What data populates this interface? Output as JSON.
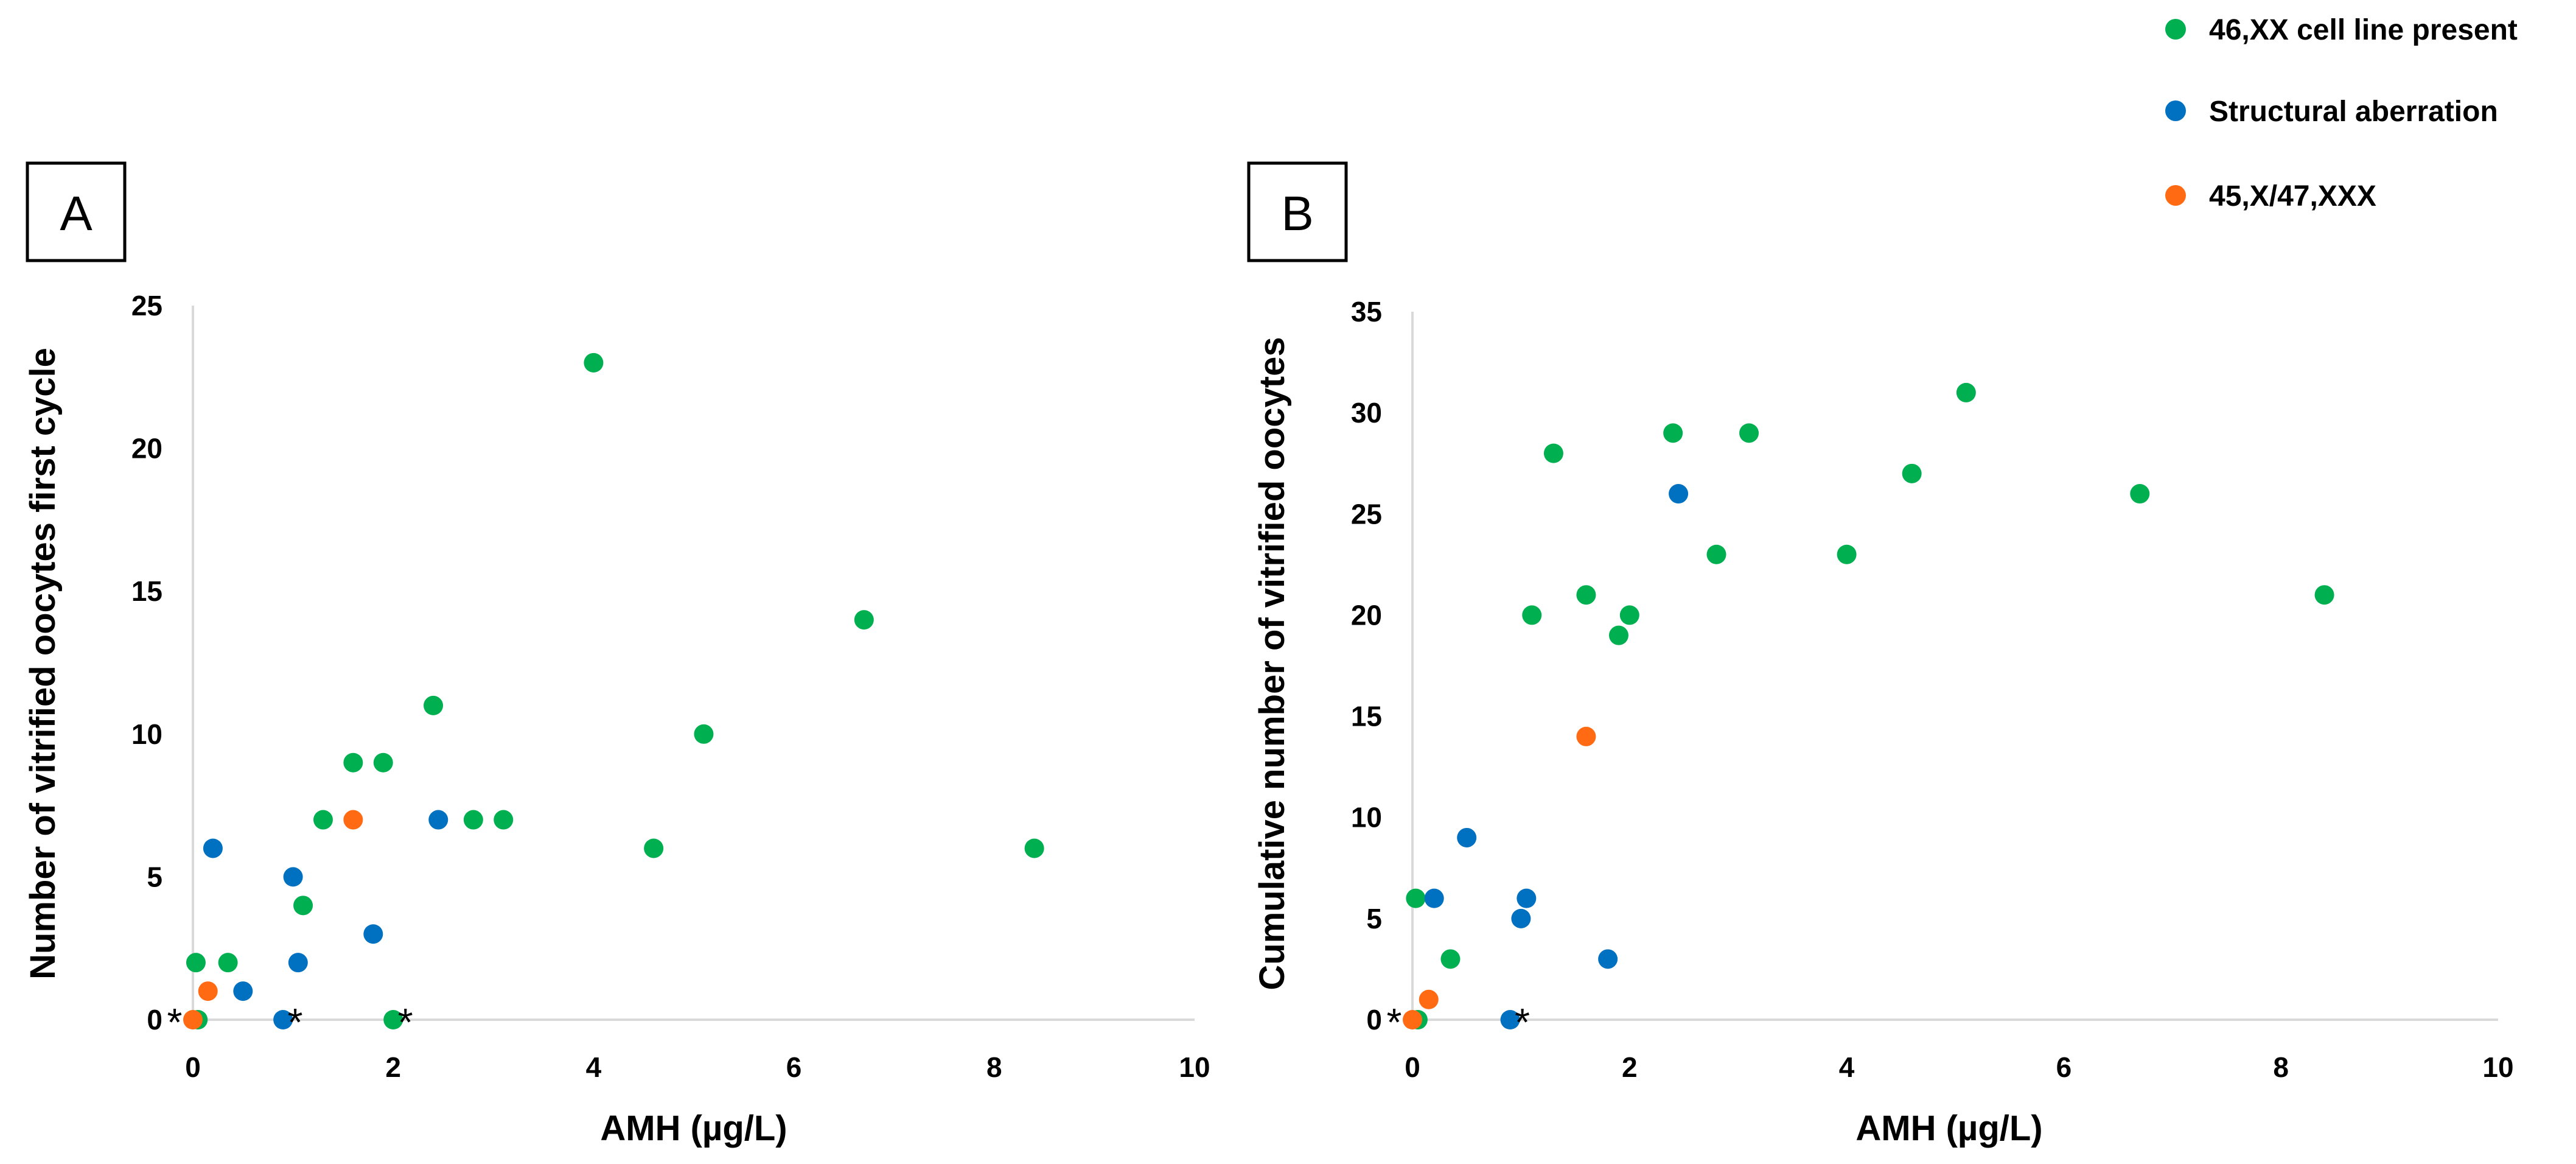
{
  "legend": [
    {
      "label": "46,XX cell line present",
      "color": "#00b050"
    },
    {
      "label": "Structural aberration",
      "color": "#0070c0"
    },
    {
      "label": "45,X/47,XXX",
      "color": "#ff6a13"
    }
  ],
  "chart_data": [
    {
      "type": "scatter",
      "panel_label": "A",
      "title": "",
      "xlabel": "AMH (µg/L)",
      "ylabel": "Number of vitrified oocytes first cycle",
      "xlim": [
        0,
        10
      ],
      "ylim": [
        0,
        25
      ],
      "xticks": [
        0,
        2,
        4,
        6,
        8,
        10
      ],
      "yticks": [
        0,
        5,
        10,
        15,
        20,
        25
      ],
      "grid": false,
      "legend_position": "top-right",
      "series": [
        {
          "name": "46,XX cell line present",
          "color": "#00b050",
          "points": [
            [
              0.03,
              2
            ],
            [
              0.05,
              0
            ],
            [
              0.35,
              2
            ],
            [
              1.1,
              4
            ],
            [
              1.3,
              7
            ],
            [
              1.6,
              9
            ],
            [
              1.9,
              9
            ],
            [
              2.0,
              0
            ],
            [
              2.4,
              11
            ],
            [
              2.8,
              7
            ],
            [
              3.1,
              7
            ],
            [
              4.0,
              23
            ],
            [
              4.6,
              6
            ],
            [
              5.1,
              10
            ],
            [
              6.7,
              14
            ],
            [
              8.4,
              6
            ]
          ]
        },
        {
          "name": "Structural aberration",
          "color": "#0070c0",
          "points": [
            [
              0.2,
              6
            ],
            [
              0.5,
              1
            ],
            [
              0.9,
              0
            ],
            [
              1.0,
              5
            ],
            [
              1.05,
              2
            ],
            [
              1.8,
              3
            ],
            [
              2.45,
              7
            ]
          ]
        },
        {
          "name": "45,X/47,XXX",
          "color": "#ff6a13",
          "points": [
            [
              0.0,
              0
            ],
            [
              0.15,
              1
            ],
            [
              1.6,
              7
            ]
          ]
        }
      ],
      "annotations": [
        {
          "text": "*",
          "x": 0.0,
          "y": 0
        },
        {
          "text": "*",
          "x": 0.9,
          "y": 0
        },
        {
          "text": "*",
          "x": 2.0,
          "y": 0
        }
      ]
    },
    {
      "type": "scatter",
      "panel_label": "B",
      "title": "",
      "xlabel": "AMH (µg/L)",
      "ylabel": "Cumulative number of vitrified oocytes",
      "xlim": [
        0,
        10
      ],
      "ylim": [
        0,
        35
      ],
      "xticks": [
        0,
        2,
        4,
        6,
        8,
        10
      ],
      "yticks": [
        0,
        5,
        10,
        15,
        20,
        25,
        30,
        35
      ],
      "grid": false,
      "series": [
        {
          "name": "46,XX cell line present",
          "color": "#00b050",
          "points": [
            [
              0.03,
              6
            ],
            [
              0.05,
              0
            ],
            [
              0.35,
              3
            ],
            [
              1.1,
              20
            ],
            [
              1.3,
              28
            ],
            [
              1.6,
              21
            ],
            [
              1.9,
              19
            ],
            [
              2.0,
              20
            ],
            [
              2.4,
              29
            ],
            [
              2.8,
              23
            ],
            [
              3.1,
              29
            ],
            [
              4.0,
              23
            ],
            [
              4.6,
              27
            ],
            [
              5.1,
              31
            ],
            [
              6.7,
              26
            ],
            [
              8.4,
              21
            ]
          ]
        },
        {
          "name": "Structural aberration",
          "color": "#0070c0",
          "points": [
            [
              0.2,
              6
            ],
            [
              0.5,
              9
            ],
            [
              0.9,
              0
            ],
            [
              1.0,
              5
            ],
            [
              1.05,
              6
            ],
            [
              1.8,
              3
            ],
            [
              2.45,
              26
            ]
          ]
        },
        {
          "name": "45,X/47,XXX",
          "color": "#ff6a13",
          "points": [
            [
              0.0,
              0
            ],
            [
              0.15,
              1
            ],
            [
              1.6,
              14
            ]
          ]
        }
      ],
      "annotations": [
        {
          "text": "*",
          "x": 0.0,
          "y": 0
        },
        {
          "text": "*",
          "x": 0.9,
          "y": 0
        }
      ]
    }
  ]
}
